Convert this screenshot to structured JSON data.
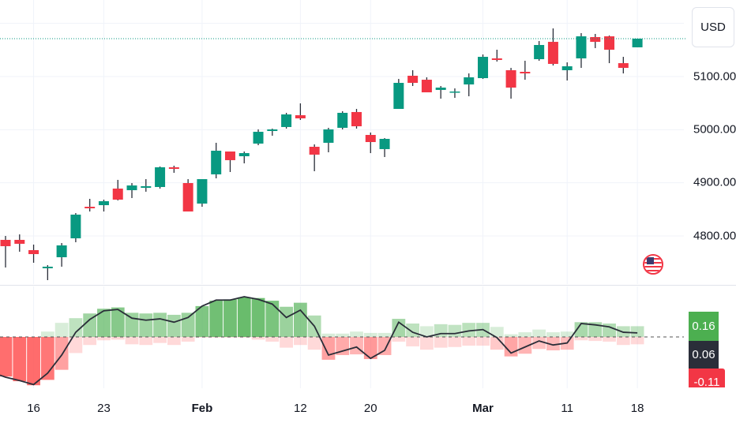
{
  "currency_button": {
    "label": "USD"
  },
  "flag_icon": "us-flag-icon",
  "colors": {
    "up": "#089981",
    "down": "#f23645",
    "grid": "#f0f3fa",
    "ind_up": "#4caf50",
    "ind_down": "#ff5252",
    "line": "#2a2e39",
    "label_dark": "#2a2e39",
    "label_green": "#4caf50",
    "label_red": "#f23645"
  },
  "chart_data": [
    {
      "type": "candlestick",
      "y_ticks": [
        "5100.00",
        "5000.00",
        "4900.00",
        "4800.00"
      ],
      "y_tick_values": [
        5100,
        5000,
        4900,
        4800,
        5200
      ],
      "grid": true,
      "x_labels": [
        {
          "date": "Jan 16",
          "text": "16",
          "major": false
        },
        {
          "date": "Jan 23",
          "text": "23",
          "major": false
        },
        {
          "date": "Feb 1",
          "text": "Feb",
          "major": true
        },
        {
          "date": "Feb 12",
          "text": "12",
          "major": false
        },
        {
          "date": "Feb 20",
          "text": "20",
          "major": false
        },
        {
          "date": "Mar 1",
          "text": "Mar",
          "major": true
        },
        {
          "date": "Mar 11",
          "text": "11",
          "major": false
        },
        {
          "date": "Mar 18",
          "text": "18",
          "major": false
        }
      ],
      "last_price": 5171.3,
      "candles": [
        {
          "date": "Jan 11",
          "o": 4792.6,
          "h": 4800.0,
          "l": 4740.6,
          "c": 4780.7
        },
        {
          "date": "Jan 12",
          "o": 4792.6,
          "h": 4802.9,
          "l": 4770.3,
          "c": 4785.2
        },
        {
          "date": "Jan 16",
          "o": 4773.3,
          "h": 4783.7,
          "l": 4749.5,
          "c": 4765.8
        },
        {
          "date": "Jan 17",
          "o": 4739.1,
          "h": 4745.0,
          "l": 4716.8,
          "c": 4742.1
        },
        {
          "date": "Jan 18",
          "o": 4759.9,
          "h": 4786.6,
          "l": 4742.1,
          "c": 4782.2
        },
        {
          "date": "Jan 19",
          "o": 4795.5,
          "h": 4843.0,
          "l": 4788.1,
          "c": 4840.1
        },
        {
          "date": "Jan 22",
          "o": 4854.9,
          "h": 4869.8,
          "l": 4846.0,
          "c": 4852.0
        },
        {
          "date": "Jan 23",
          "o": 4857.9,
          "h": 4868.3,
          "l": 4846.0,
          "c": 4865.4
        },
        {
          "date": "Jan 24",
          "o": 4889.1,
          "h": 4905.5,
          "l": 4866.8,
          "c": 4868.3
        },
        {
          "date": "Jan 25",
          "o": 4886.1,
          "h": 4899.5,
          "l": 4871.3,
          "c": 4895.0
        },
        {
          "date": "Jan 26",
          "o": 4890.6,
          "h": 4906.9,
          "l": 4883.2,
          "c": 4893.6
        },
        {
          "date": "Jan 29",
          "o": 4892.1,
          "h": 4930.7,
          "l": 4889.1,
          "c": 4929.2
        },
        {
          "date": "Jan 30",
          "o": 4929.2,
          "h": 4932.2,
          "l": 4918.8,
          "c": 4926.2
        },
        {
          "date": "Jan 31",
          "o": 4899.5,
          "h": 4906.9,
          "l": 4846.0,
          "c": 4846.0
        },
        {
          "date": "Feb 1",
          "o": 4860.9,
          "h": 4906.9,
          "l": 4854.9,
          "c": 4906.9
        },
        {
          "date": "Feb 2",
          "o": 4915.9,
          "h": 4975.3,
          "l": 4908.4,
          "c": 4960.4
        },
        {
          "date": "Feb 5",
          "o": 4958.9,
          "h": 4958.9,
          "l": 4920.3,
          "c": 4942.6
        },
        {
          "date": "Feb 6",
          "o": 4950.0,
          "h": 4958.9,
          "l": 4936.6,
          "c": 4955.9
        },
        {
          "date": "Feb 7",
          "o": 4973.8,
          "h": 5000.5,
          "l": 4970.8,
          "c": 4996.0
        },
        {
          "date": "Feb 8",
          "o": 4997.5,
          "h": 5002.0,
          "l": 4988.6,
          "c": 5000.5
        },
        {
          "date": "Feb 9",
          "o": 5005.0,
          "h": 5031.7,
          "l": 5002.0,
          "c": 5028.7
        },
        {
          "date": "Feb 12",
          "o": 5027.2,
          "h": 5049.5,
          "l": 5018.3,
          "c": 5021.3
        },
        {
          "date": "Feb 13",
          "o": 4967.8,
          "h": 4972.3,
          "l": 4921.8,
          "c": 4953.0
        },
        {
          "date": "Feb 14",
          "o": 4975.3,
          "h": 5003.5,
          "l": 4957.4,
          "c": 5000.5
        },
        {
          "date": "Feb 15",
          "o": 5003.5,
          "h": 5034.7,
          "l": 5000.5,
          "c": 5031.7
        },
        {
          "date": "Feb 16",
          "o": 5033.2,
          "h": 5039.1,
          "l": 5002.0,
          "c": 5006.4
        },
        {
          "date": "Feb 20",
          "o": 4990.1,
          "h": 4994.6,
          "l": 4955.9,
          "c": 4976.7
        },
        {
          "date": "Feb 21",
          "o": 4963.4,
          "h": 4984.2,
          "l": 4948.5,
          "c": 4982.7
        },
        {
          "date": "Feb 22",
          "o": 5039.1,
          "h": 5095.5,
          "l": 5039.1,
          "c": 5088.1
        },
        {
          "date": "Feb 23",
          "o": 5101.5,
          "h": 5111.9,
          "l": 5082.2,
          "c": 5088.1
        },
        {
          "date": "Feb 26",
          "o": 5094.0,
          "h": 5098.5,
          "l": 5070.3,
          "c": 5070.3
        },
        {
          "date": "Feb 27",
          "o": 5074.8,
          "h": 5082.2,
          "l": 5058.4,
          "c": 5079.2
        },
        {
          "date": "Feb 28",
          "o": 5070.3,
          "h": 5077.7,
          "l": 5059.9,
          "c": 5071.8
        },
        {
          "date": "Feb 29",
          "o": 5085.1,
          "h": 5105.9,
          "l": 5062.9,
          "c": 5098.5
        },
        {
          "date": "Mar 1",
          "o": 5097.0,
          "h": 5141.6,
          "l": 5095.5,
          "c": 5137.1
        },
        {
          "date": "Mar 4",
          "o": 5134.2,
          "h": 5150.5,
          "l": 5128.2,
          "c": 5131.2
        },
        {
          "date": "Mar 5",
          "o": 5111.9,
          "h": 5116.3,
          "l": 5058.4,
          "c": 5079.2
        },
        {
          "date": "Mar 6",
          "o": 5108.9,
          "h": 5129.7,
          "l": 5094.0,
          "c": 5105.9
        },
        {
          "date": "Mar 7",
          "o": 5132.7,
          "h": 5166.8,
          "l": 5129.7,
          "c": 5159.4
        },
        {
          "date": "Mar 8",
          "o": 5165.3,
          "h": 5190.6,
          "l": 5120.8,
          "c": 5123.8
        },
        {
          "date": "Mar 11",
          "o": 5111.9,
          "h": 5126.7,
          "l": 5092.6,
          "c": 5119.3
        },
        {
          "date": "Mar 12",
          "o": 5134.2,
          "h": 5181.7,
          "l": 5116.3,
          "c": 5175.7
        },
        {
          "date": "Mar 13",
          "o": 5174.3,
          "h": 5180.2,
          "l": 5153.5,
          "c": 5165.3
        },
        {
          "date": "Mar 14",
          "o": 5175.7,
          "h": 5177.2,
          "l": 5125.2,
          "c": 5150.5
        },
        {
          "date": "Mar 15",
          "o": 5125.2,
          "h": 5137.1,
          "l": 5105.9,
          "c": 5116.3
        },
        {
          "date": "Mar 18",
          "o": 5155.0,
          "h": 5171.3,
          "l": 5155.0,
          "c": 5171.3
        }
      ]
    },
    {
      "type": "histogram+line",
      "zero_line": "dashed",
      "last_values": {
        "positive": "0.16",
        "line": "0.06",
        "negative": "-0.11"
      },
      "positive": [
        0,
        0,
        0,
        0.08,
        0.21,
        0.28,
        0.35,
        0.42,
        0.44,
        0.36,
        0.35,
        0.36,
        0.33,
        0.36,
        0.46,
        0.54,
        0.56,
        0.59,
        0.58,
        0.54,
        0.45,
        0.51,
        0.32,
        0.05,
        0.05,
        0.08,
        0.06,
        0.06,
        0.27,
        0.2,
        0.16,
        0.19,
        0.18,
        0.21,
        0.21,
        0.15,
        0.04,
        0.07,
        0.11,
        0.07,
        0.08,
        0.22,
        0.22,
        0.2,
        0.16,
        0.16
      ],
      "negative": [
        -0.59,
        -0.66,
        -0.72,
        -0.64,
        -0.49,
        -0.24,
        -0.12,
        -0.05,
        -0.04,
        -0.11,
        -0.12,
        -0.09,
        -0.12,
        -0.07,
        -0.01,
        -0.01,
        -0.01,
        -0.01,
        -0.04,
        -0.07,
        -0.16,
        -0.12,
        -0.19,
        -0.34,
        -0.27,
        -0.26,
        -0.33,
        -0.27,
        -0.07,
        -0.14,
        -0.19,
        -0.16,
        -0.15,
        -0.13,
        -0.13,
        -0.19,
        -0.29,
        -0.25,
        -0.18,
        -0.2,
        -0.19,
        -0.05,
        -0.06,
        -0.07,
        -0.12,
        -0.11
      ],
      "line": [
        -0.6,
        -0.65,
        -0.71,
        -0.54,
        -0.27,
        0.07,
        0.26,
        0.39,
        0.41,
        0.28,
        0.25,
        0.27,
        0.22,
        0.29,
        0.46,
        0.55,
        0.55,
        0.6,
        0.56,
        0.49,
        0.29,
        0.4,
        0.16,
        -0.27,
        -0.21,
        -0.15,
        -0.32,
        -0.2,
        0.22,
        0.07,
        0.0,
        0.05,
        0.05,
        0.09,
        0.11,
        -0.01,
        -0.24,
        -0.15,
        -0.06,
        -0.12,
        -0.09,
        0.2,
        0.18,
        0.15,
        0.07,
        0.06
      ]
    }
  ]
}
